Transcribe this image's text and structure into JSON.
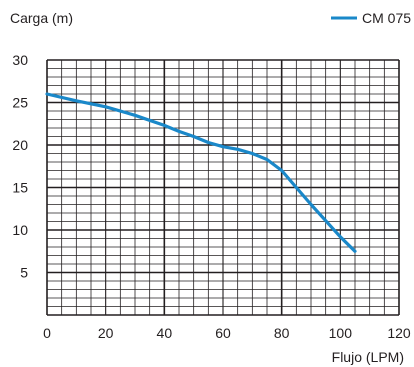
{
  "chart_data": {
    "type": "line",
    "ylabel": "Carga (m)",
    "xlabel": "Flujo (LPM)",
    "xlim": [
      0,
      120
    ],
    "ylim": [
      0,
      30
    ],
    "x_ticks": [
      0,
      20,
      40,
      60,
      80,
      100,
      120
    ],
    "y_ticks": [
      5,
      10,
      15,
      20,
      25,
      30
    ],
    "x_tick_labels": [
      "0",
      "20",
      "40",
      "60",
      "80",
      "100",
      "120"
    ],
    "y_tick_labels": [
      "5",
      "10",
      "15",
      "20",
      "25",
      "30"
    ],
    "grid": true,
    "legend": {
      "position": "top-right"
    },
    "colors": {
      "series": "#1a88c9",
      "grid": "#231f20"
    },
    "series": [
      {
        "name": "CM 075",
        "x": [
          0,
          10,
          20,
          30,
          40,
          45,
          50,
          55,
          60,
          65,
          70,
          75,
          80,
          85,
          90,
          95,
          100,
          105
        ],
        "y": [
          26,
          25.2,
          24.5,
          23.5,
          22.3,
          21.6,
          21,
          20.3,
          19.8,
          19.5,
          19,
          18.3,
          17,
          15,
          13,
          11.1,
          9.2,
          7.5
        ]
      }
    ]
  }
}
